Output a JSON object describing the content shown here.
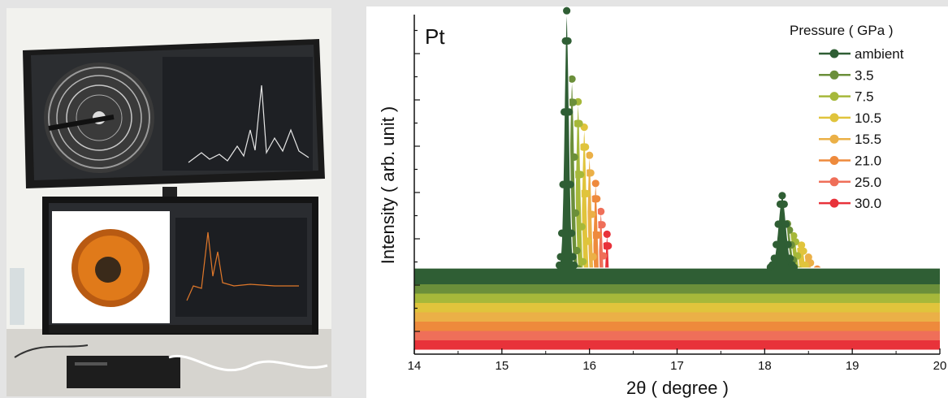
{
  "photo": {
    "description_icon": "lab-workstation-photo"
  },
  "chart_data": {
    "type": "line",
    "panel_label": "Pt",
    "xlabel": "2θ ( degree )",
    "ylabel": "Intensity ( arb. unit )",
    "xlim": [
      14,
      20
    ],
    "x_ticks": [
      "14",
      "15",
      "16",
      "17",
      "18",
      "19",
      "20"
    ],
    "legend_title": "Pressure ( GPa )",
    "legend_position": "top-right",
    "grid": false,
    "series": [
      {
        "name": "ambient",
        "color": "#2f5e34",
        "peak1_x": 15.74,
        "peak1_height": 0.96,
        "peak2_x": 18.2,
        "peak2_height": 0.27,
        "baseline": 0.0
      },
      {
        "name": "3.5",
        "color": "#6b8f3a",
        "peak1_x": 15.8,
        "peak1_height": 0.74,
        "peak2_x": 18.26,
        "peak2_height": 0.2,
        "baseline": 0.0
      },
      {
        "name": "7.5",
        "color": "#a6b83a",
        "peak1_x": 15.87,
        "peak1_height": 0.69,
        "peak2_x": 18.33,
        "peak2_height": 0.19,
        "baseline": 0.0
      },
      {
        "name": "10.5",
        "color": "#e0c43c",
        "peak1_x": 15.94,
        "peak1_height": 0.63,
        "peak2_x": 18.42,
        "peak2_height": 0.19,
        "baseline": 0.0
      },
      {
        "name": "15.5",
        "color": "#ebb047",
        "peak1_x": 16.0,
        "peak1_height": 0.56,
        "peak2_x": 18.5,
        "peak2_height": 0.18,
        "baseline": 0.0
      },
      {
        "name": "21.0",
        "color": "#ee8a3c",
        "peak1_x": 16.07,
        "peak1_height": 0.49,
        "peak2_x": 18.6,
        "peak2_height": 0.17,
        "baseline": 0.0
      },
      {
        "name": "25.0",
        "color": "#ef6f59",
        "peak1_x": 16.13,
        "peak1_height": 0.42,
        "peak2_x": 18.65,
        "peak2_height": 0.16,
        "baseline": 0.0
      },
      {
        "name": "30.0",
        "color": "#e8323a",
        "peak1_x": 16.2,
        "peak1_height": 0.37,
        "peak2_x": 18.72,
        "peak2_height": 0.15,
        "baseline": 0.0
      }
    ]
  }
}
